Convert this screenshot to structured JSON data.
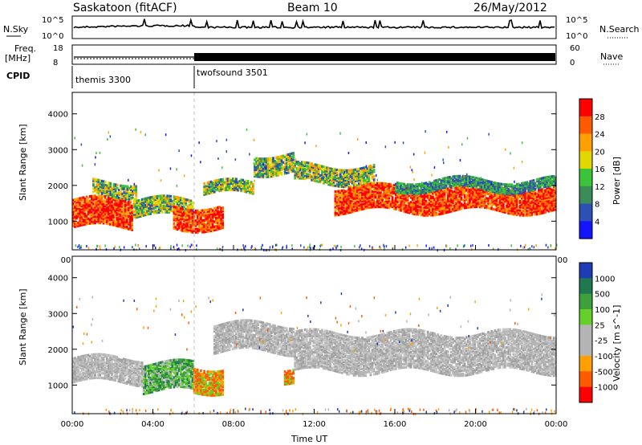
{
  "header": {
    "station": "Saskatoon (fitACF)",
    "beam": "Beam 10",
    "date": "26/May/2012"
  },
  "top_panels": {
    "nsky_label": "N.Sky",
    "nsky_ticks": [
      "10^5",
      "10^0"
    ],
    "nsearch_label": "N.Search",
    "nsearch_ticks": [
      "10^5",
      "10^0"
    ],
    "freq_label_1": "Freq.",
    "freq_label_2": "[MHz]",
    "freq_ticks": [
      "18",
      "8"
    ],
    "nave_label": "Nave",
    "nave_ticks": [
      "60",
      "0"
    ],
    "cpid_label": "CPID",
    "cpid_blocks": [
      {
        "name": "themis 3300",
        "start_h": 0,
        "end_h": 6
      },
      {
        "name": "twofsound 3501",
        "start_h": 6,
        "end_h": 24
      }
    ]
  },
  "chart_data": [
    {
      "type": "heatmap",
      "title": "",
      "xlabel": "",
      "ylabel": "Slant Range [km]",
      "x_ticks": [
        "00:00",
        "04:00",
        "08:00",
        "12:00",
        "16:00",
        "20:00",
        "00:00"
      ],
      "y_ticks": [
        "1000",
        "2000",
        "3000",
        "4000"
      ],
      "xlim_hours": [
        0,
        24
      ],
      "ylim_km": [
        200,
        4600
      ],
      "colorbar_label": "Power [dB]",
      "colorbar_ticks": [
        "28",
        "24",
        "20",
        "16",
        "12",
        "8",
        "4"
      ],
      "colorbar_colors": [
        "#ff0000",
        "#ff5a00",
        "#ffa000",
        "#e0d800",
        "#3bc43b",
        "#3c8c5a",
        "#2c50b4",
        "#1414ff"
      ],
      "bands": [
        {
          "start_h": 0.0,
          "end_h": 3.0,
          "center_km": 1200,
          "width_km": 800,
          "level": "high"
        },
        {
          "start_h": 1.0,
          "end_h": 3.2,
          "center_km": 1900,
          "width_km": 400,
          "level": "mid"
        },
        {
          "start_h": 3.0,
          "end_h": 6.0,
          "center_km": 1350,
          "width_km": 500,
          "level": "mid"
        },
        {
          "start_h": 5.0,
          "end_h": 7.5,
          "center_km": 1100,
          "width_km": 650,
          "level": "high"
        },
        {
          "start_h": 6.5,
          "end_h": 9.0,
          "center_km": 1900,
          "width_km": 350,
          "level": "mid"
        },
        {
          "start_h": 9.0,
          "end_h": 11.0,
          "center_km": 2600,
          "width_km": 550,
          "level": "mid"
        },
        {
          "start_h": 11.0,
          "end_h": 15.0,
          "center_km": 2300,
          "width_km": 500,
          "level": "mid"
        },
        {
          "start_h": 13.0,
          "end_h": 24.0,
          "center_km": 1600,
          "width_km": 700,
          "level": "high"
        },
        {
          "start_h": 16.0,
          "end_h": 24.0,
          "center_km": 2000,
          "width_km": 300,
          "level": "low"
        }
      ]
    },
    {
      "type": "heatmap",
      "title": "",
      "xlabel": "Time UT",
      "ylabel": "Slant Range [km]",
      "x_ticks": [
        "00:00",
        "04:00",
        "08:00",
        "12:00",
        "16:00",
        "20:00",
        "00:00"
      ],
      "y_ticks": [
        "1000",
        "2000",
        "3000",
        "4000"
      ],
      "xlim_hours": [
        0,
        24
      ],
      "ylim_km": [
        200,
        4600
      ],
      "colorbar_label": "Velocity [m s^-1]",
      "colorbar_ticks": [
        "1000",
        "500",
        "100",
        "25",
        "-25",
        "-100",
        "-500",
        "-1000"
      ],
      "colorbar_colors": [
        "#1e3cb4",
        "#1e7850",
        "#3ca03c",
        "#66d02a",
        "#b4b4b4",
        "#b4b4b4",
        "#ffa000",
        "#ff5a00",
        "#ff0000"
      ],
      "bands": [
        {
          "start_h": 0.0,
          "end_h": 3.5,
          "center_km": 1400,
          "width_km": 700,
          "level": "gray"
        },
        {
          "start_h": 3.5,
          "end_h": 6.0,
          "center_km": 1200,
          "width_km": 800,
          "level": "green"
        },
        {
          "start_h": 6.0,
          "end_h": 7.5,
          "center_km": 1150,
          "width_km": 700,
          "level": "orange"
        },
        {
          "start_h": 7.0,
          "end_h": 11.0,
          "center_km": 2300,
          "width_km": 800,
          "level": "gray"
        },
        {
          "start_h": 10.5,
          "end_h": 11.0,
          "center_km": 1300,
          "width_km": 400,
          "level": "orange"
        },
        {
          "start_h": 11.0,
          "end_h": 24.0,
          "center_km": 1900,
          "width_km": 1100,
          "level": "gray"
        }
      ]
    }
  ]
}
